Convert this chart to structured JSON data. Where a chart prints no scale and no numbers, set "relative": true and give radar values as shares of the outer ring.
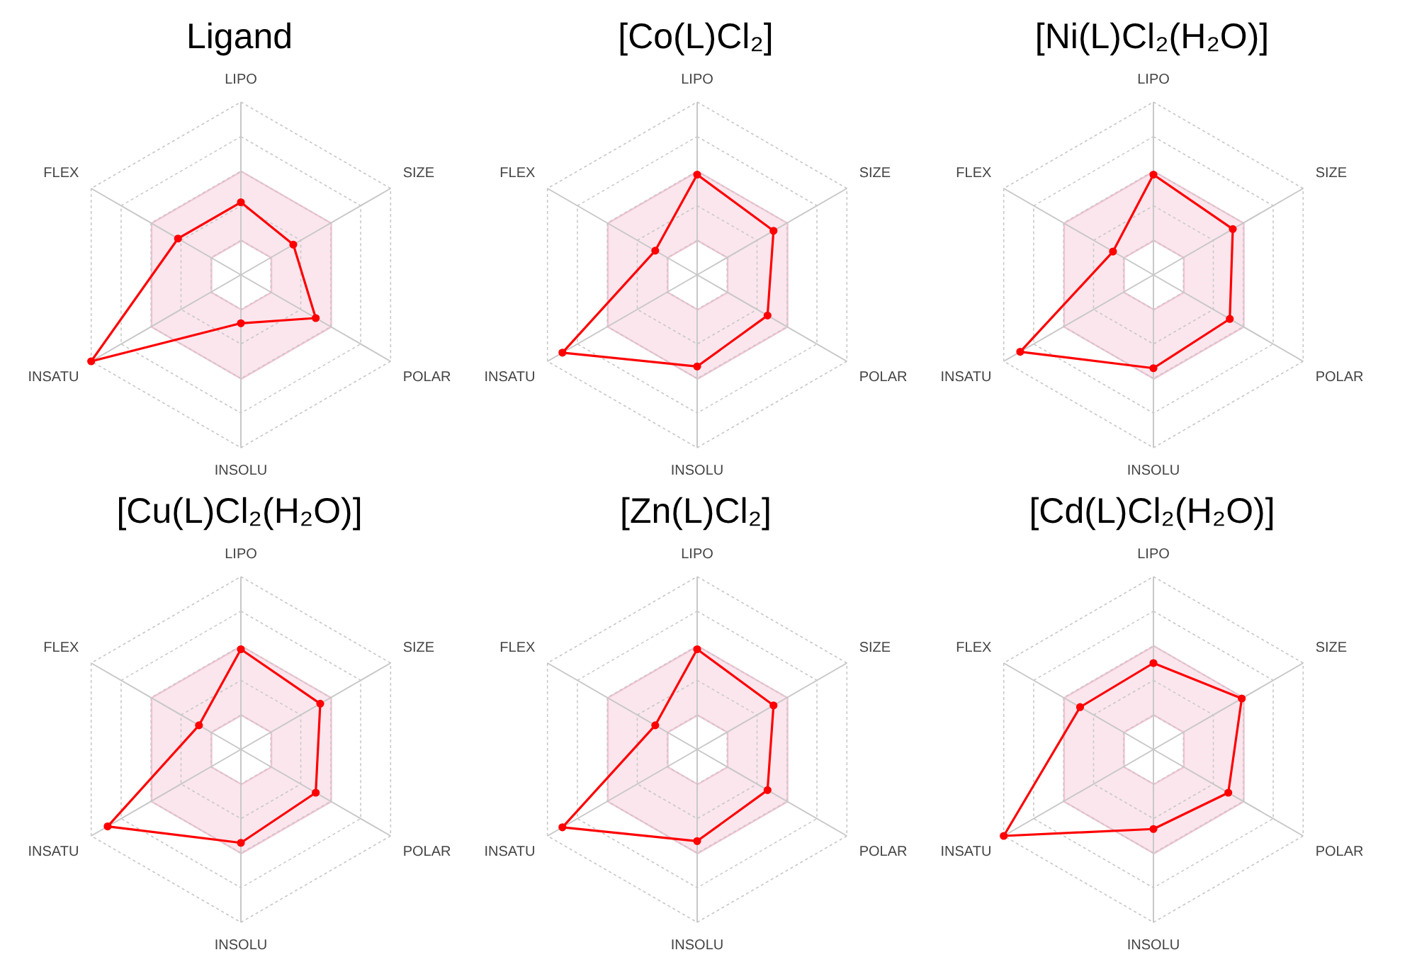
{
  "chart_data": [
    {
      "type": "radar",
      "title": "Ligand",
      "categories": [
        "LIPO",
        "SIZE",
        "POLAR",
        "INSOLU",
        "INSATU",
        "FLEX"
      ],
      "relative": true,
      "grid": true,
      "marker": "circle",
      "legend": false,
      "series": [
        {
          "color": "#ff0000",
          "values": [
            0.42,
            0.35,
            0.5,
            0.28,
            1.0,
            0.42
          ]
        }
      ]
    },
    {
      "type": "radar",
      "title": "[Co(L)Cl₂]",
      "categories": [
        "LIPO",
        "SIZE",
        "POLAR",
        "INSOLU",
        "INSATU",
        "FLEX"
      ],
      "relative": true,
      "grid": true,
      "marker": "circle",
      "legend": false,
      "series": [
        {
          "color": "#ff0000",
          "values": [
            0.58,
            0.51,
            0.47,
            0.53,
            0.9,
            0.28
          ]
        }
      ]
    },
    {
      "type": "radar",
      "title": "[Ni(L)Cl₂(H₂O)]",
      "categories": [
        "LIPO",
        "SIZE",
        "POLAR",
        "INSOLU",
        "INSATU",
        "FLEX"
      ],
      "relative": true,
      "grid": true,
      "marker": "circle",
      "legend": false,
      "series": [
        {
          "color": "#ff0000",
          "values": [
            0.58,
            0.53,
            0.51,
            0.54,
            0.89,
            0.27
          ]
        }
      ]
    },
    {
      "type": "radar",
      "title": "[Cu(L)Cl₂(H₂O)]",
      "categories": [
        "LIPO",
        "SIZE",
        "POLAR",
        "INSOLU",
        "INSATU",
        "FLEX"
      ],
      "relative": true,
      "grid": true,
      "marker": "circle",
      "legend": false,
      "series": [
        {
          "color": "#ff0000",
          "values": [
            0.58,
            0.53,
            0.5,
            0.54,
            0.89,
            0.28
          ]
        }
      ]
    },
    {
      "type": "radar",
      "title": "[Zn(L)Cl₂]",
      "categories": [
        "LIPO",
        "SIZE",
        "POLAR",
        "INSOLU",
        "INSATU",
        "FLEX"
      ],
      "relative": true,
      "grid": true,
      "marker": "circle",
      "legend": false,
      "series": [
        {
          "color": "#ff0000",
          "values": [
            0.58,
            0.51,
            0.47,
            0.53,
            0.9,
            0.28
          ]
        }
      ]
    },
    {
      "type": "radar",
      "title": "[Cd(L)Cl₂(H₂O)]",
      "categories": [
        "LIPO",
        "SIZE",
        "POLAR",
        "INSOLU",
        "INSATU",
        "FLEX"
      ],
      "relative": true,
      "grid": true,
      "marker": "circle",
      "legend": false,
      "series": [
        {
          "color": "#ff0000",
          "values": [
            0.5,
            0.59,
            0.5,
            0.46,
            1.0,
            0.49
          ]
        }
      ]
    }
  ]
}
